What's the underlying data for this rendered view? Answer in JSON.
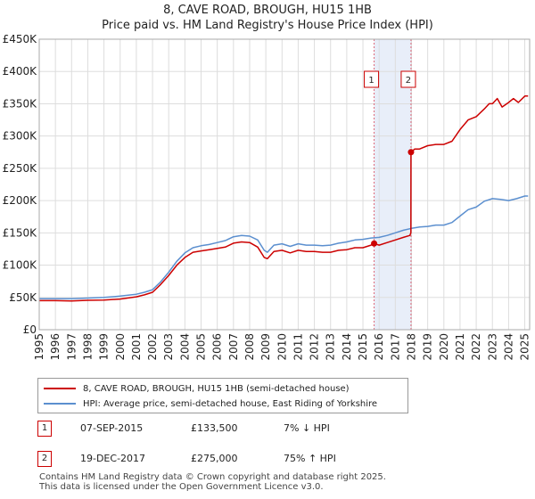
{
  "title": "8, CAVE ROAD, BROUGH, HU15 1HB",
  "subtitle": "Price paid vs. HM Land Registry's House Price Index (HPI)",
  "chart_data": {
    "type": "line",
    "title": "8, CAVE ROAD, BROUGH, HU15 1HB",
    "subtitle": "Price paid vs. HM Land Registry's House Price Index (HPI)",
    "xlim": [
      1995,
      2025.3
    ],
    "ylim": [
      0,
      450000
    ],
    "y_ticks": [
      0,
      50000,
      100000,
      150000,
      200000,
      250000,
      300000,
      350000,
      400000,
      450000
    ],
    "y_tick_labels": [
      "£0",
      "£50K",
      "£100K",
      "£150K",
      "£200K",
      "£250K",
      "£300K",
      "£350K",
      "£400K",
      "£450K"
    ],
    "x_ticks": [
      1995,
      1996,
      1997,
      1998,
      1999,
      2000,
      2001,
      2002,
      2003,
      2004,
      2005,
      2006,
      2007,
      2008,
      2009,
      2010,
      2011,
      2012,
      2013,
      2014,
      2015,
      2016,
      2017,
      2018,
      2019,
      2020,
      2021,
      2022,
      2023,
      2024,
      2025
    ],
    "x_tick_labels": [
      "1995",
      "1996",
      "1997",
      "1998",
      "1999",
      "2000",
      "2001",
      "2002",
      "2003",
      "2004",
      "2005",
      "2006",
      "2007",
      "2008",
      "2009",
      "2010",
      "2011",
      "2012",
      "2013",
      "2014",
      "2015",
      "2016",
      "2017",
      "2018",
      "2019",
      "2020",
      "2021",
      "2022",
      "2023",
      "2024",
      "2025"
    ],
    "grid": true,
    "shaded_region": [
      2015.69,
      2017.97
    ],
    "series": [
      {
        "name": "8, CAVE ROAD, BROUGH, HU15 1HB (semi-detached house)",
        "color": "#cc0000",
        "x": [
          1995.0,
          1996.0,
          1997.0,
          1998.0,
          1999.0,
          2000.0,
          2001.0,
          2001.5,
          2002.0,
          2002.5,
          2003.0,
          2003.5,
          2004.0,
          2004.5,
          2005.0,
          2005.5,
          2006.0,
          2006.5,
          2007.0,
          2007.5,
          2008.0,
          2008.5,
          2008.9,
          2009.1,
          2009.5,
          2010.0,
          2010.5,
          2011.0,
          2011.5,
          2012.0,
          2012.5,
          2013.0,
          2013.5,
          2014.0,
          2014.5,
          2015.0,
          2015.5,
          2015.69,
          2016.0,
          2016.5,
          2017.0,
          2017.5,
          2017.9,
          2017.96,
          2017.97,
          2018.2,
          2018.5,
          2019.0,
          2019.5,
          2020.0,
          2020.5,
          2021.0,
          2021.5,
          2022.0,
          2022.5,
          2022.8,
          2023.0,
          2023.3,
          2023.6,
          2024.0,
          2024.3,
          2024.6,
          2025.0,
          2025.2
        ],
        "y": [
          45000,
          45000,
          44500,
          45500,
          46000,
          47500,
          51000,
          54000,
          58000,
          70000,
          84000,
          100000,
          112000,
          120000,
          122000,
          124000,
          126000,
          128000,
          134000,
          136000,
          135000,
          128000,
          112000,
          110000,
          121000,
          123000,
          119000,
          123000,
          121000,
          121000,
          120000,
          120000,
          123000,
          124000,
          127000,
          127000,
          131000,
          133500,
          131000,
          135000,
          139000,
          143000,
          146000,
          150000,
          275000,
          280000,
          280000,
          285000,
          287000,
          287000,
          292000,
          310000,
          325000,
          330000,
          342000,
          350000,
          350000,
          358000,
          345000,
          352000,
          358000,
          352000,
          362000,
          362000
        ]
      },
      {
        "name": "HPI: Average price, semi-detached house, East Riding of Yorkshire",
        "color": "#5b8fcf",
        "x": [
          1995.0,
          1996.0,
          1997.0,
          1998.0,
          1999.0,
          2000.0,
          2001.0,
          2001.5,
          2002.0,
          2002.5,
          2003.0,
          2003.5,
          2004.0,
          2004.5,
          2005.0,
          2005.5,
          2006.0,
          2006.5,
          2007.0,
          2007.5,
          2008.0,
          2008.5,
          2008.9,
          2009.1,
          2009.5,
          2010.0,
          2010.5,
          2011.0,
          2011.5,
          2012.0,
          2012.5,
          2013.0,
          2013.5,
          2014.0,
          2014.5,
          2015.0,
          2015.5,
          2016.0,
          2016.5,
          2017.0,
          2017.5,
          2018.0,
          2018.5,
          2019.0,
          2019.5,
          2020.0,
          2020.5,
          2021.0,
          2021.5,
          2022.0,
          2022.5,
          2023.0,
          2023.5,
          2024.0,
          2024.5,
          2025.0,
          2025.2
        ],
        "y": [
          48000,
          48000,
          48000,
          49000,
          50000,
          52000,
          55000,
          58000,
          62000,
          74000,
          89000,
          106000,
          119000,
          127000,
          130000,
          132000,
          135000,
          138000,
          144000,
          146000,
          145000,
          139000,
          123000,
          120000,
          131000,
          133000,
          129000,
          133000,
          131000,
          131000,
          130000,
          131000,
          134000,
          136000,
          139000,
          140000,
          142000,
          143000,
          146000,
          150000,
          154000,
          157000,
          159000,
          160000,
          162000,
          162000,
          166000,
          176000,
          186000,
          190000,
          199000,
          203000,
          202000,
          200000,
          203000,
          207000,
          207000
        ]
      }
    ],
    "sales": [
      {
        "label": "1",
        "date": "07-SEP-2015",
        "x": 2015.69,
        "price": 133500,
        "price_label": "£133,500",
        "hpi": "7% ↓ HPI"
      },
      {
        "label": "2",
        "date": "19-DEC-2017",
        "x": 2017.97,
        "price": 275000,
        "price_label": "£275,000",
        "hpi": "75% ↑ HPI"
      }
    ]
  },
  "legend": {
    "items": [
      {
        "label": "8, CAVE ROAD, BROUGH, HU15 1HB (semi-detached house)",
        "color": "#cc0000"
      },
      {
        "label": "HPI: Average price, semi-detached house, East Riding of Yorkshire",
        "color": "#5b8fcf"
      }
    ]
  },
  "footer": {
    "line1": "Contains HM Land Registry data © Crown copyright and database right 2025.",
    "line2": "This data is licensed under the Open Government Licence v3.0."
  }
}
